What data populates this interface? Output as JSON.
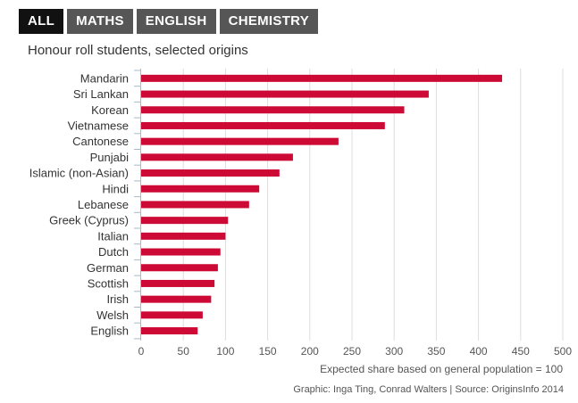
{
  "tabs": [
    {
      "label": "ALL",
      "active": true
    },
    {
      "label": "MATHS",
      "active": false
    },
    {
      "label": "ENGLISH",
      "active": false
    },
    {
      "label": "CHEMISTRY",
      "active": false
    }
  ],
  "subtitle": "Honour roll students, selected origins",
  "footer": "Graphic: Inga Ting, Conrad Walters | Source: OriginsInfo 2014",
  "colors": {
    "bar": "#cc0a35",
    "grid": "#dddddd",
    "axis": "#aab8c8"
  },
  "chart_data": {
    "type": "bar",
    "orientation": "horizontal",
    "categories": [
      "Mandarin",
      "Sri Lankan",
      "Korean",
      "Vietnamese",
      "Cantonese",
      "Punjabi",
      "Islamic (non-Asian)",
      "Hindi",
      "Lebanese",
      "Greek (Cyprus)",
      "Italian",
      "Dutch",
      "German",
      "Scottish",
      "Irish",
      "Welsh",
      "English"
    ],
    "values": [
      428,
      341,
      312,
      289,
      234,
      180,
      164,
      140,
      128,
      103,
      100,
      94,
      91,
      87,
      83,
      73,
      67
    ],
    "xlabel": "Expected share based on general population = 100",
    "xlim": [
      0,
      500
    ],
    "xticks": [
      0,
      50,
      100,
      150,
      200,
      250,
      300,
      350,
      400,
      450,
      500
    ],
    "grid": true
  }
}
